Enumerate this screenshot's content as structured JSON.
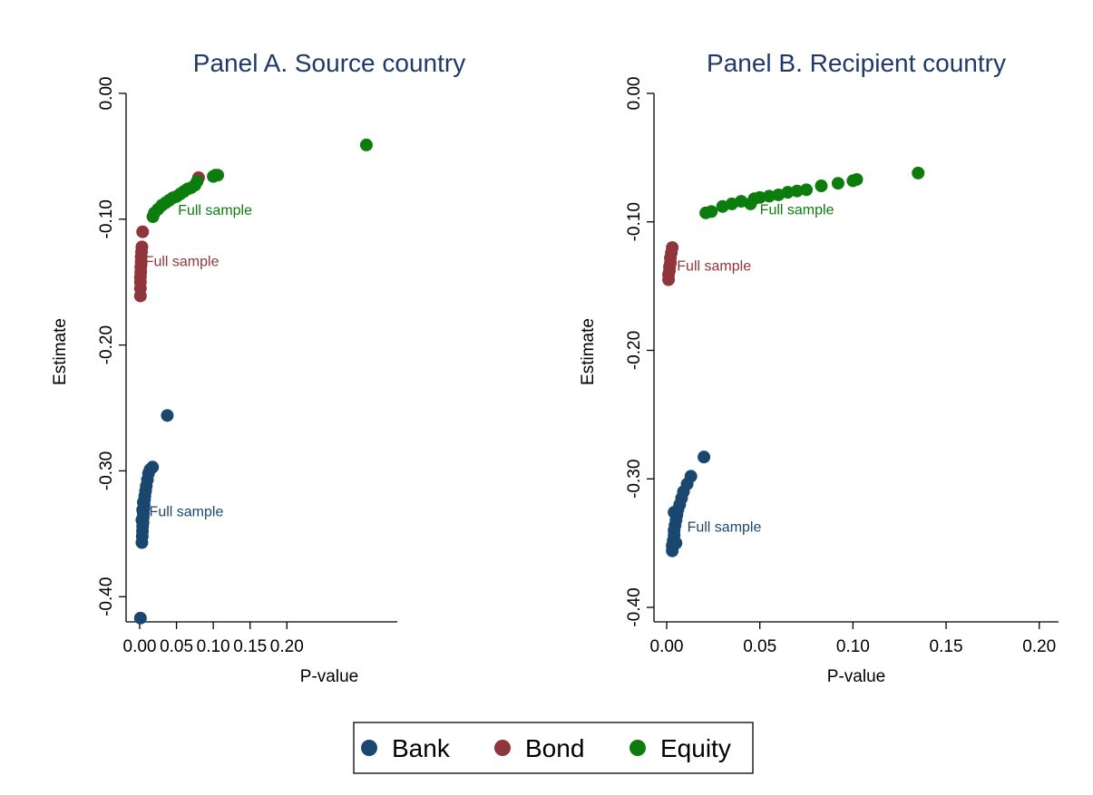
{
  "chart_data": [
    {
      "type": "scatter",
      "title": "Panel A. Source country",
      "xlabel": "P-value",
      "ylabel": "Estimate",
      "xticks": [
        "0.00",
        "0.05",
        "0.10",
        "0.15",
        "0.20"
      ],
      "yticks": [
        "0.00",
        "-0.10",
        "-0.20",
        "-0.30",
        "-0.40"
      ],
      "xlim": [
        0,
        0.35
      ],
      "ylim": [
        -0.42,
        0.0
      ],
      "grid": false,
      "series": [
        {
          "name": "Bank",
          "points": [
            [
              0.001,
              -0.417
            ],
            [
              0.0375,
              -0.256
            ],
            [
              0.0175,
              -0.297
            ],
            [
              0.014,
              -0.299
            ],
            [
              0.012,
              -0.302
            ],
            [
              0.0105,
              -0.307
            ],
            [
              0.009,
              -0.312
            ],
            [
              0.008,
              -0.316
            ],
            [
              0.007,
              -0.32
            ],
            [
              0.0065,
              -0.323
            ],
            [
              0.006,
              -0.327
            ],
            [
              0.0055,
              -0.33
            ],
            [
              0.005,
              -0.334
            ],
            [
              0.0048,
              -0.337
            ],
            [
              0.0045,
              -0.341
            ],
            [
              0.004,
              -0.344
            ],
            [
              0.0038,
              -0.348
            ],
            [
              0.0035,
              -0.352
            ],
            [
              0.003,
              -0.357
            ],
            [
              0.003,
              -0.339
            ],
            [
              0.004,
              -0.331
            ],
            [
              0.005,
              -0.325
            ]
          ]
        },
        {
          "name": "Bond",
          "points": [
            [
              0.004,
              -0.11
            ],
            [
              0.003,
              -0.122
            ],
            [
              0.0025,
              -0.126
            ],
            [
              0.002,
              -0.13
            ],
            [
              0.002,
              -0.134
            ],
            [
              0.0015,
              -0.138
            ],
            [
              0.0015,
              -0.142
            ],
            [
              0.001,
              -0.146
            ],
            [
              0.001,
              -0.15
            ],
            [
              0.001,
              -0.155
            ],
            [
              0.001,
              -0.161
            ],
            [
              0.08,
              -0.067
            ]
          ]
        },
        {
          "name": "Equity",
          "points": [
            [
              0.018,
              -0.098
            ],
            [
              0.02,
              -0.095
            ],
            [
              0.025,
              -0.092
            ],
            [
              0.03,
              -0.089
            ],
            [
              0.035,
              -0.087
            ],
            [
              0.04,
              -0.085
            ],
            [
              0.045,
              -0.083
            ],
            [
              0.05,
              -0.082
            ],
            [
              0.055,
              -0.08
            ],
            [
              0.06,
              -0.078
            ],
            [
              0.065,
              -0.076
            ],
            [
              0.07,
              -0.075
            ],
            [
              0.075,
              -0.073
            ],
            [
              0.078,
              -0.07
            ],
            [
              0.1,
              -0.066
            ],
            [
              0.103,
              -0.065
            ],
            [
              0.106,
              -0.065
            ],
            [
              0.308,
              -0.041
            ]
          ]
        }
      ],
      "annotations": [
        {
          "text": "Full sample",
          "series": "Equity",
          "x": 0.052,
          "y": -0.093
        },
        {
          "text": "Full sample",
          "series": "Bond",
          "x": 0.007,
          "y": -0.1335
        },
        {
          "text": "Full sample",
          "series": "Bank",
          "x": 0.013,
          "y": -0.3325
        }
      ]
    },
    {
      "type": "scatter",
      "title": "Panel B. Recipient country",
      "xlabel": "P-value",
      "ylabel": "Estimate",
      "xticks": [
        "0.00",
        "0.05",
        "0.10",
        "0.15",
        "0.20"
      ],
      "yticks": [
        "0.00",
        "-0.10",
        "-0.20",
        "-0.30",
        "-0.40"
      ],
      "xlim": [
        0,
        0.205
      ],
      "ylim": [
        -0.4,
        0.0
      ],
      "grid": false,
      "series": [
        {
          "name": "Bank",
          "points": [
            [
              0.02,
              -0.283
            ],
            [
              0.013,
              -0.298
            ],
            [
              0.011,
              -0.304
            ],
            [
              0.009,
              -0.31
            ],
            [
              0.008,
              -0.315
            ],
            [
              0.007,
              -0.32
            ],
            [
              0.006,
              -0.324
            ],
            [
              0.0055,
              -0.328
            ],
            [
              0.005,
              -0.332
            ],
            [
              0.0045,
              -0.336
            ],
            [
              0.004,
              -0.34
            ],
            [
              0.004,
              -0.344
            ],
            [
              0.0035,
              -0.348
            ],
            [
              0.003,
              -0.352
            ],
            [
              0.003,
              -0.356
            ],
            [
              0.005,
              -0.35
            ],
            [
              0.004,
              -0.326
            ]
          ]
        },
        {
          "name": "Bond",
          "points": [
            [
              0.003,
              -0.12
            ],
            [
              0.0025,
              -0.124
            ],
            [
              0.002,
              -0.128
            ],
            [
              0.002,
              -0.132
            ],
            [
              0.0015,
              -0.135
            ],
            [
              0.0015,
              -0.138
            ],
            [
              0.001,
              -0.141
            ],
            [
              0.001,
              -0.145
            ]
          ]
        },
        {
          "name": "Equity",
          "points": [
            [
              0.021,
              -0.093
            ],
            [
              0.024,
              -0.092
            ],
            [
              0.03,
              -0.088
            ],
            [
              0.035,
              -0.086
            ],
            [
              0.04,
              -0.084
            ],
            [
              0.045,
              -0.086
            ],
            [
              0.047,
              -0.082
            ],
            [
              0.05,
              -0.081
            ],
            [
              0.055,
              -0.08
            ],
            [
              0.06,
              -0.079
            ],
            [
              0.065,
              -0.077
            ],
            [
              0.07,
              -0.076
            ],
            [
              0.075,
              -0.075
            ],
            [
              0.083,
              -0.072
            ],
            [
              0.092,
              -0.07
            ],
            [
              0.1,
              -0.068
            ],
            [
              0.102,
              -0.067
            ],
            [
              0.135,
              -0.062
            ]
          ]
        }
      ],
      "annotations": [
        {
          "text": "Full sample",
          "series": "Equity",
          "x": 0.05,
          "y": -0.0905
        },
        {
          "text": "Full sample",
          "series": "Bond",
          "x": 0.0055,
          "y": -0.1345
        },
        {
          "text": "Full sample",
          "series": "Bank",
          "x": 0.011,
          "y": -0.3375
        }
      ]
    }
  ],
  "legend": {
    "placement": "bottom-center",
    "items": [
      {
        "label": "Bank",
        "color": "#1a476f"
      },
      {
        "label": "Bond",
        "color": "#90353b"
      },
      {
        "label": "Equity",
        "color": "#0c7d0c"
      }
    ]
  },
  "colors": {
    "Bank": "#1a476f",
    "Bond": "#90353b",
    "Equity": "#0c7d0c",
    "title": "#1f3a68"
  }
}
